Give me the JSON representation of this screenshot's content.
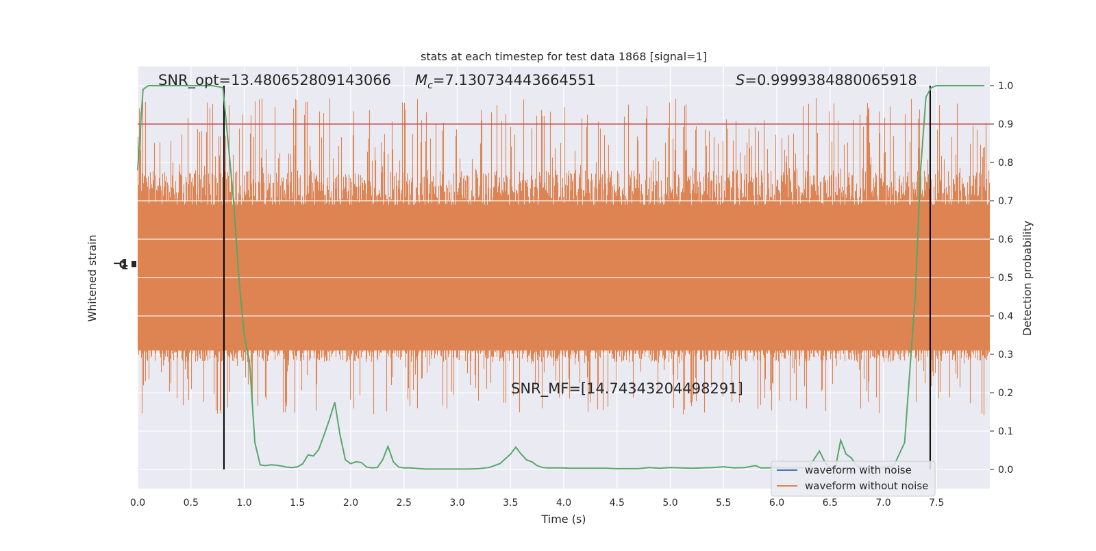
{
  "chart_data": {
    "type": "line",
    "title": "stats at each timestep for test data 1868 [signal=1]",
    "xlabel": "Time (s)",
    "ylabel_left": "Whitened strain",
    "ylabel_right": "Detection probability",
    "xlim": [
      0.0,
      8.0
    ],
    "ylim_right": [
      -0.05,
      1.05
    ],
    "x_ticks": [
      "0.0",
      "0.5",
      "1.0",
      "1.5",
      "2.0",
      "2.5",
      "3.0",
      "3.5",
      "4.0",
      "4.5",
      "5.0",
      "5.5",
      "6.0",
      "6.5",
      "7.0",
      "7.5"
    ],
    "y_ticks_right": [
      "0.0",
      "0.1",
      "0.2",
      "0.3",
      "0.4",
      "0.5",
      "0.6",
      "0.7",
      "0.8",
      "0.9",
      "1.0"
    ],
    "y_ticks_left_overlapped": [
      "−1",
      "0",
      "1"
    ],
    "grid": true,
    "legend_position": "lower-right",
    "series": [
      {
        "name": "waveform with noise",
        "color": "#4c72b0"
      },
      {
        "name": "waveform without noise",
        "color": "#dd8452"
      }
    ],
    "detection_probability": {
      "color": "#55a868",
      "x": [
        0.0,
        0.05,
        0.1,
        0.15,
        0.2,
        0.3,
        0.4,
        0.5,
        0.6,
        0.7,
        0.8,
        0.85,
        0.9,
        0.95,
        1.0,
        1.05,
        1.1,
        1.15,
        1.2,
        1.25,
        1.3,
        1.35,
        1.4,
        1.45,
        1.5,
        1.55,
        1.6,
        1.65,
        1.7,
        1.75,
        1.8,
        1.85,
        1.9,
        1.95,
        2.0,
        2.05,
        2.1,
        2.15,
        2.2,
        2.25,
        2.3,
        2.35,
        2.4,
        2.45,
        2.5,
        2.55,
        2.6,
        2.65,
        2.7,
        2.75,
        2.8,
        2.85,
        2.9,
        2.95,
        3.0,
        3.1,
        3.2,
        3.3,
        3.4,
        3.5,
        3.55,
        3.6,
        3.65,
        3.7,
        3.75,
        3.8,
        3.85,
        3.9,
        3.95,
        4.0,
        4.05,
        4.1,
        4.2,
        4.3,
        4.4,
        4.5,
        4.6,
        4.7,
        4.8,
        4.9,
        5.0,
        5.1,
        5.2,
        5.3,
        5.4,
        5.5,
        5.6,
        5.7,
        5.8,
        5.85,
        5.9,
        6.0,
        6.1,
        6.2,
        6.3,
        6.4,
        6.45,
        6.5,
        6.55,
        6.6,
        6.65,
        6.7,
        6.75,
        6.8,
        6.9,
        7.0,
        7.1,
        7.2,
        7.3,
        7.35,
        7.4,
        7.45,
        7.5,
        7.55,
        7.6,
        7.65,
        7.7,
        7.8,
        7.9,
        7.95
      ],
      "y": [
        0.78,
        0.99,
        1.0,
        1.0,
        1.0,
        1.0,
        1.0,
        1.0,
        1.0,
        1.0,
        0.995,
        0.85,
        0.7,
        0.5,
        0.35,
        0.28,
        0.07,
        0.012,
        0.01,
        0.012,
        0.011,
        0.009,
        0.006,
        0.005,
        0.007,
        0.015,
        0.038,
        0.035,
        0.052,
        0.09,
        0.13,
        0.175,
        0.09,
        0.025,
        0.015,
        0.02,
        0.018,
        0.006,
        0.004,
        0.005,
        0.025,
        0.06,
        0.02,
        0.006,
        0.004,
        0.004,
        0.003,
        0.002,
        0.001,
        0.001,
        0.001,
        0.001,
        0.001,
        0.001,
        0.001,
        0.001,
        0.002,
        0.005,
        0.015,
        0.04,
        0.058,
        0.04,
        0.025,
        0.02,
        0.01,
        0.005,
        0.004,
        0.004,
        0.004,
        0.004,
        0.003,
        0.003,
        0.003,
        0.003,
        0.003,
        0.002,
        0.002,
        0.002,
        0.005,
        0.003,
        0.005,
        0.004,
        0.003,
        0.004,
        0.005,
        0.007,
        0.004,
        0.005,
        0.01,
        0.004,
        0.004,
        0.005,
        0.004,
        0.004,
        0.005,
        0.048,
        0.02,
        0.004,
        0.004,
        0.076,
        0.04,
        0.03,
        0.01,
        0.005,
        0.005,
        0.005,
        0.01,
        0.07,
        0.45,
        0.78,
        0.97,
        0.995,
        1.0,
        1.0,
        1.0,
        1.0,
        1.0,
        1.0,
        1.0,
        1.0
      ]
    },
    "threshold": {
      "y": 0.9,
      "color": "#c44e52"
    },
    "event_markers_x": [
      0.81,
      7.44
    ],
    "annotations": {
      "snr_opt": "SNR_opt=13.480652809143066",
      "mc_symbol": "M",
      "mc_subscript": "c",
      "mc_value": "=7.130734443664551",
      "s_symbol": "S",
      "s_value": "=0.9999384880065918",
      "snr_mf": "SNR_MF=[14.74343204498291]"
    }
  }
}
